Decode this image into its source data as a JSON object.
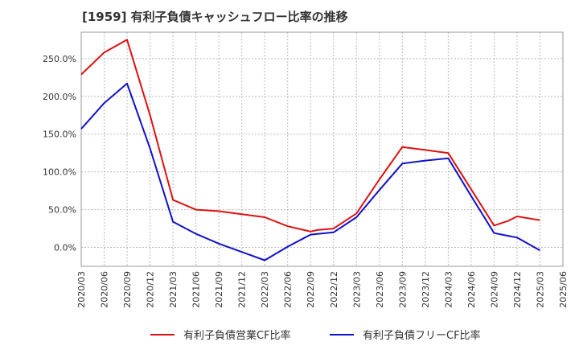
{
  "chart_data": {
    "type": "line",
    "title": "[1959]  有利子負債キャッシュフロー比率の推移",
    "xlabel": "",
    "ylabel": "",
    "ylim": [
      -25,
      285
    ],
    "yticks": [
      0,
      50,
      100,
      150,
      200,
      250
    ],
    "ytick_labels": [
      "0.0%",
      "50.0%",
      "100.0%",
      "150.0%",
      "200.0%",
      "250.0%"
    ],
    "categories": [
      "2020/03",
      "2020/06",
      "2020/09",
      "2020/12",
      "2021/03",
      "2021/06",
      "2021/09",
      "2021/12",
      "2022/03",
      "2022/06",
      "2022/09",
      "2022/12",
      "2023/03",
      "2023/06",
      "2023/09",
      "2023/12",
      "2024/03",
      "2024/06",
      "2024/09",
      "2024/12",
      "2025/03",
      "2025/06"
    ],
    "grid": true,
    "legend_position": "bottom",
    "series": [
      {
        "name": "有利子負債営業CF比率",
        "color": "#dd1111",
        "points": [
          {
            "x": 0.0,
            "y": 229
          },
          {
            "x": 1.0,
            "y": 258
          },
          {
            "x": 2.0,
            "y": 275
          },
          {
            "x": 3.0,
            "y": 175
          },
          {
            "x": 4.0,
            "y": 63
          },
          {
            "x": 5.0,
            "y": 50
          },
          {
            "x": 6.0,
            "y": 48
          },
          {
            "x": 7.0,
            "y": 44
          },
          {
            "x": 8.0,
            "y": 40
          },
          {
            "x": 9.0,
            "y": 28
          },
          {
            "x": 10.0,
            "y": 21
          },
          {
            "x": 10.3,
            "y": 23
          },
          {
            "x": 11.0,
            "y": 25
          },
          {
            "x": 12.0,
            "y": 45
          },
          {
            "x": 13.0,
            "y": 90
          },
          {
            "x": 14.0,
            "y": 133
          },
          {
            "x": 15.0,
            "y": 129
          },
          {
            "x": 16.0,
            "y": 125
          },
          {
            "x": 17.0,
            "y": 77
          },
          {
            "x": 18.0,
            "y": 29
          },
          {
            "x": 18.6,
            "y": 35
          },
          {
            "x": 19.0,
            "y": 41
          },
          {
            "x": 20.0,
            "y": 36
          }
        ]
      },
      {
        "name": "有利子負債フリーCF比率",
        "color": "#1111cc",
        "points": [
          {
            "x": 0.0,
            "y": 157
          },
          {
            "x": 1.0,
            "y": 191
          },
          {
            "x": 2.0,
            "y": 217
          },
          {
            "x": 3.0,
            "y": 131
          },
          {
            "x": 4.0,
            "y": 34
          },
          {
            "x": 5.0,
            "y": 18
          },
          {
            "x": 6.0,
            "y": 5
          },
          {
            "x": 7.0,
            "y": -6
          },
          {
            "x": 8.0,
            "y": -17
          },
          {
            "x": 9.0,
            "y": 1
          },
          {
            "x": 10.0,
            "y": 17
          },
          {
            "x": 11.0,
            "y": 20
          },
          {
            "x": 12.0,
            "y": 40
          },
          {
            "x": 13.0,
            "y": 76
          },
          {
            "x": 14.0,
            "y": 111
          },
          {
            "x": 15.0,
            "y": 115
          },
          {
            "x": 16.0,
            "y": 118
          },
          {
            "x": 17.0,
            "y": 68
          },
          {
            "x": 18.0,
            "y": 19
          },
          {
            "x": 19.0,
            "y": 13
          },
          {
            "x": 20.0,
            "y": -4
          }
        ]
      }
    ]
  }
}
